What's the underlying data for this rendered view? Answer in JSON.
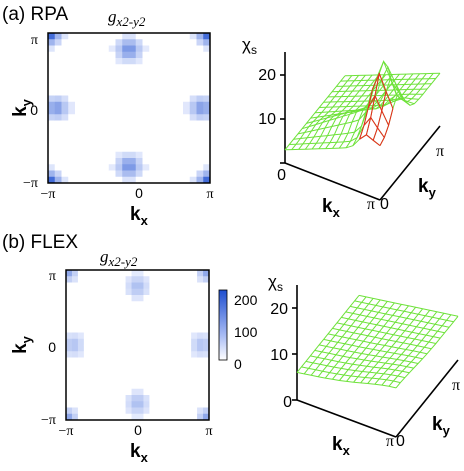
{
  "panel_a": {
    "label": "(a) RPA",
    "map_title": {
      "base": "g",
      "sub": "x2-y2"
    },
    "ky_axis": {
      "base": "k",
      "sub": "y"
    },
    "kx_axis": {
      "base": "k",
      "sub": "x"
    },
    "ticks_y": [
      "π",
      "0",
      "−π"
    ],
    "ticks_x": [
      "−π",
      "0",
      "π"
    ],
    "surf_label": {
      "base": "χ",
      "sub": "s"
    },
    "surf_z_ticks": [
      "20",
      "10",
      "0"
    ],
    "surf_kx_ticks": [
      "0",
      "π"
    ],
    "surf_ky_ticks": [
      "0",
      "π"
    ]
  },
  "panel_b": {
    "label": "(b) FLEX",
    "map_title": {
      "base": "g",
      "sub": "x2-y2"
    },
    "ky_axis": {
      "base": "k",
      "sub": "y"
    },
    "kx_axis": {
      "base": "k",
      "sub": "x"
    },
    "ticks_y": [
      "π",
      "0",
      "−π"
    ],
    "ticks_x": [
      "−π",
      "0",
      "π"
    ],
    "colorbar_ticks": [
      "200",
      "100",
      "0"
    ],
    "surf_label": {
      "base": "χ",
      "sub": "s"
    },
    "surf_z_ticks": [
      "20",
      "10",
      "0"
    ],
    "surf_kx_ticks": [
      "0",
      "π"
    ],
    "surf_ky_ticks": [
      "0",
      "π"
    ]
  },
  "colors": {
    "map_strong": "#1f4fd0",
    "map_weak": "#eef2ff",
    "mesh_green": "#6ee23a",
    "mesh_red": "#e8281e"
  }
}
